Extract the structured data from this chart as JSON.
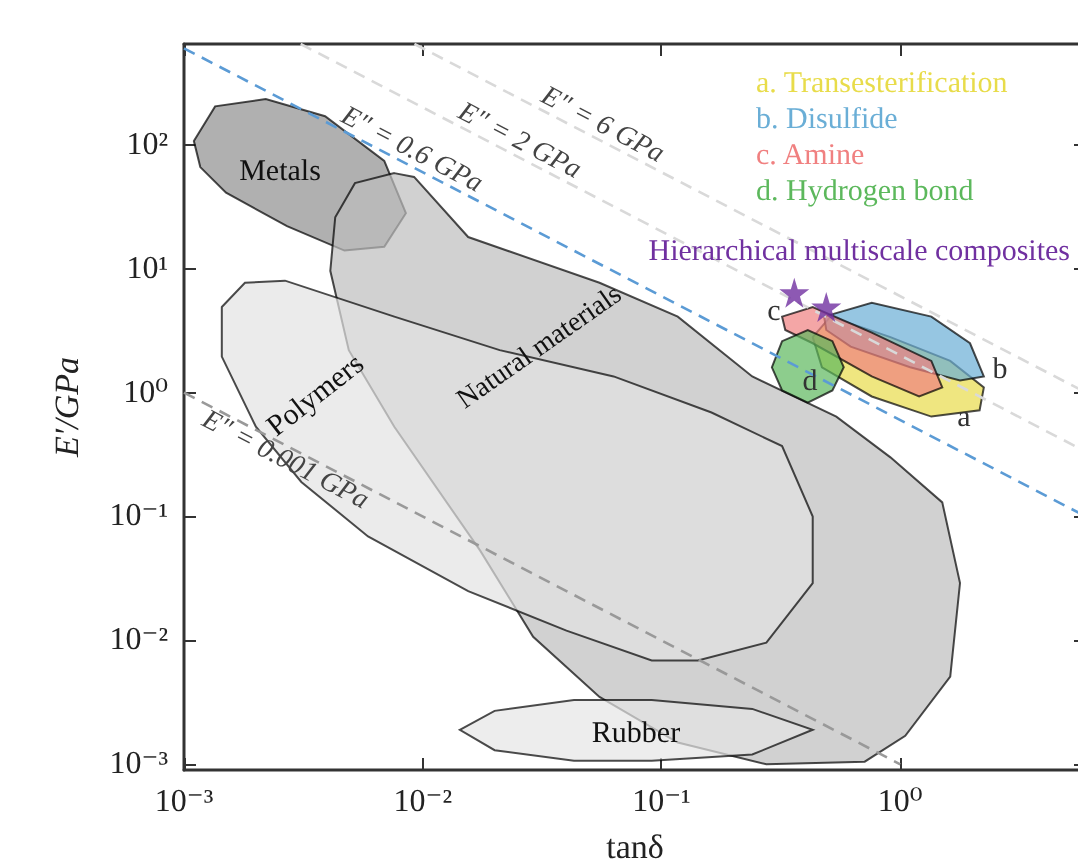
{
  "chart_data": {
    "type": "area",
    "xlabel": "tanδ",
    "ylabel": "E′/GPa",
    "log": "xy",
    "grid": false,
    "legend": "top right",
    "xlim": [
      0.001,
      6
    ],
    "ylim": [
      0.0009,
      650
    ],
    "xticks": [
      {
        "value": 0.001,
        "label": "10⁻³"
      },
      {
        "value": 0.01,
        "label": "10⁻²"
      },
      {
        "value": 0.1,
        "label": "10⁻¹"
      },
      {
        "value": 1,
        "label": "10⁰"
      }
    ],
    "yticks": [
      {
        "value": 0.001,
        "label": "10⁻³"
      },
      {
        "value": 0.01,
        "label": "10⁻²"
      },
      {
        "value": 0.1,
        "label": "10⁻¹"
      },
      {
        "value": 1,
        "label": "10⁰"
      },
      {
        "value": 10,
        "label": "10¹"
      },
      {
        "value": 100,
        "label": "10²"
      }
    ],
    "series": [
      {
        "type": "area",
        "name": "Metals",
        "color": "#8f8f8f",
        "x": [
          0.0011,
          0.00135,
          0.0022,
          0.0039,
          0.0069,
          0.0085,
          0.0069,
          0.0047,
          0.0027,
          0.0015,
          0.00117
        ],
        "values": [
          107,
          204,
          234,
          170,
          74,
          28,
          15,
          14,
          22,
          41,
          66
        ]
      },
      {
        "type": "area",
        "name": "Natural materials",
        "color": "#bdbdbd",
        "x": [
          0.0076,
          0.0092,
          0.0155,
          0.055,
          0.117,
          0.24,
          0.54,
          0.91,
          1.5,
          1.78,
          1.62,
          1.05,
          0.71,
          0.275,
          0.117,
          0.055,
          0.029,
          0.0174,
          0.0076,
          0.0049,
          0.0041,
          0.0043,
          0.0052
        ],
        "values": [
          59,
          55,
          18,
          7.7,
          4.1,
          1.35,
          0.64,
          0.3,
          0.13,
          0.029,
          0.0051,
          0.0017,
          0.00105,
          0.001,
          0.0015,
          0.0035,
          0.0107,
          0.053,
          0.53,
          2.2,
          9.6,
          26,
          49
        ]
      },
      {
        "type": "area",
        "name": "Polymers",
        "color": "#e3e3e3",
        "x": [
          0.00144,
          0.0018,
          0.00265,
          0.0076,
          0.021,
          0.063,
          0.162,
          0.32,
          0.43,
          0.43,
          0.275,
          0.142,
          0.091,
          0.04,
          0.0155,
          0.0059,
          0.0031,
          0.002,
          0.00144
        ],
        "values": [
          4.9,
          7.7,
          8.0,
          4.1,
          2.2,
          1.35,
          0.69,
          0.37,
          0.1,
          0.029,
          0.0096,
          0.0069,
          0.0069,
          0.012,
          0.025,
          0.069,
          0.19,
          0.53,
          1.95
        ]
      },
      {
        "type": "area",
        "name": "Rubber",
        "color": "#e6e6e6",
        "x": [
          0.0143,
          0.02,
          0.043,
          0.091,
          0.24,
          0.43,
          0.24,
          0.091,
          0.043,
          0.02
        ],
        "values": [
          0.0019,
          0.0027,
          0.0033,
          0.0033,
          0.0028,
          0.0019,
          0.0012,
          0.00107,
          0.00107,
          0.0013
        ]
      },
      {
        "type": "line",
        "name": "E″ = 6 GPa",
        "color": "#d9d9d9",
        "line_style": "dashed",
        "x": [
          0.00923,
          6
        ],
        "values": [
          650,
          1
        ]
      },
      {
        "type": "line",
        "name": "E″ = 2 GPa",
        "color": "#d9d9d9",
        "line_style": "dashed",
        "x": [
          0.00308,
          6
        ],
        "values": [
          650,
          0.333
        ]
      },
      {
        "type": "line",
        "name": "E″ = 0.6 GPa",
        "color": "#5b9bd5",
        "line_style": "dashed",
        "x": [
          0.001,
          6
        ],
        "values": [
          600,
          0.1
        ]
      },
      {
        "type": "line",
        "name": "E″ = 0.001 GPa",
        "color": "#999999",
        "line_style": "dashed",
        "x": [
          0.001,
          1
        ],
        "values": [
          1,
          0.001
        ]
      },
      {
        "type": "area",
        "name": "a. Transesterification",
        "color": "#e8dc4a",
        "x": [
          0.43,
          0.51,
          0.91,
          1.62,
          2.24,
          2.15,
          1.35,
          0.76,
          0.47
        ],
        "values": [
          2.8,
          4.1,
          2.8,
          1.8,
          1.1,
          0.72,
          0.64,
          0.93,
          1.6
        ]
      },
      {
        "type": "area",
        "name": "b. Disulfide",
        "color": "#6aaed6",
        "x": [
          0.48,
          0.76,
          1.35,
          1.96,
          2.24,
          1.78,
          1.1,
          0.62,
          0.49
        ],
        "values": [
          4.1,
          5.3,
          4.1,
          2.5,
          1.35,
          1.25,
          1.6,
          2.35,
          3.2
        ]
      },
      {
        "type": "area",
        "name": "c. Amine",
        "color": "#f08080",
        "x": [
          0.32,
          0.43,
          0.76,
          1.35,
          1.5,
          1.2,
          0.76,
          0.43,
          0.33
        ],
        "values": [
          4.1,
          4.9,
          3.05,
          1.8,
          1.1,
          0.93,
          1.35,
          2.5,
          3.2
        ]
      },
      {
        "type": "area",
        "name": "d. Hydrogen bond",
        "color": "#5cb85c",
        "x": [
          0.29,
          0.32,
          0.41,
          0.52,
          0.58,
          0.52,
          0.41,
          0.32
        ],
        "values": [
          1.6,
          2.6,
          3.2,
          2.6,
          1.6,
          1.04,
          0.83,
          1.04
        ]
      },
      {
        "type": "scatter",
        "name": "Hierarchical multiscale composites",
        "color": "#7030a0",
        "marker": "star",
        "x": [
          0.36,
          0.49
        ],
        "values": [
          6.4,
          4.9
        ]
      }
    ],
    "annotations": [
      "a",
      "b",
      "c",
      "d"
    ]
  }
}
